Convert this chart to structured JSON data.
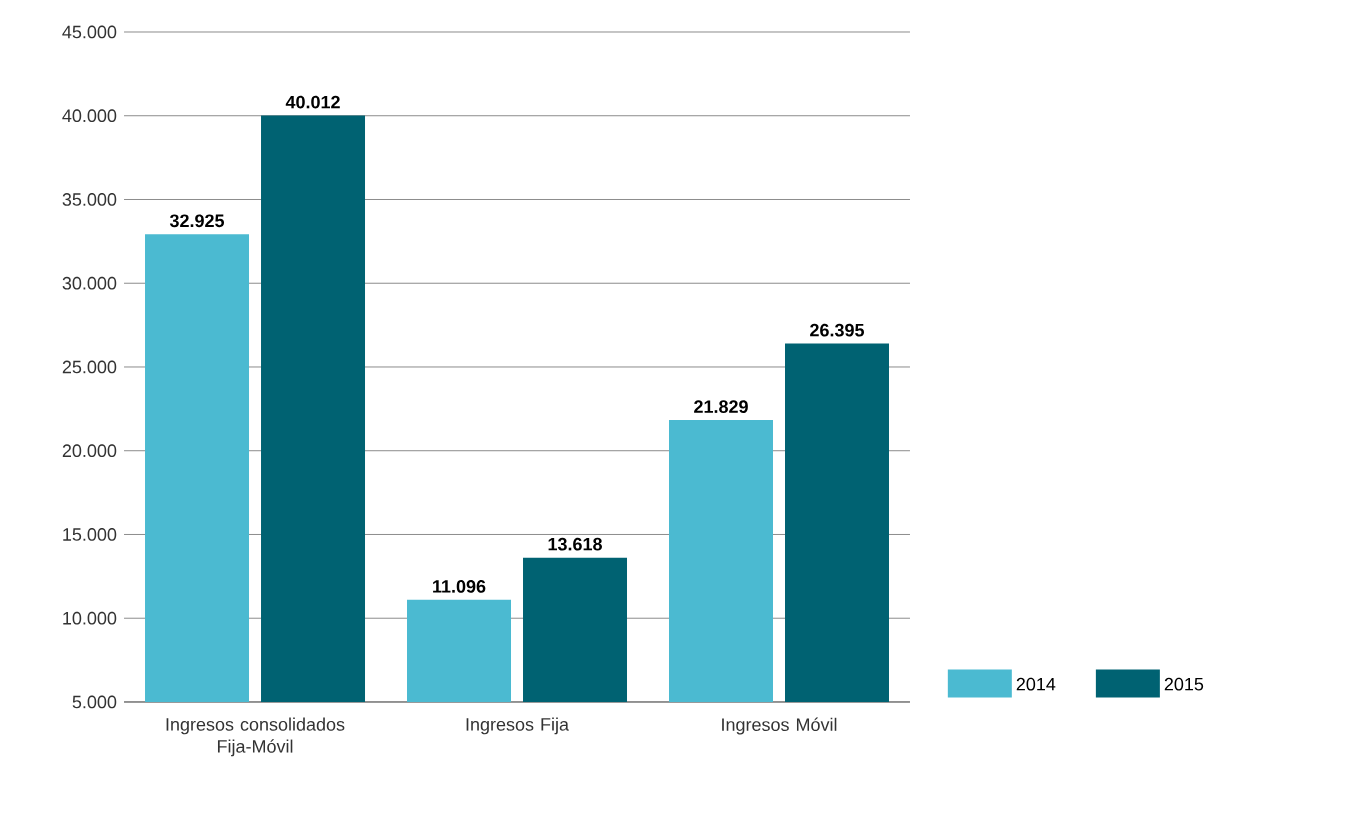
{
  "chart_data": {
    "type": "bar",
    "categories": [
      "Ingresos consolidados Fija-Móvil",
      "Ingresos Fija",
      "Ingresos Móvil"
    ],
    "series": [
      {
        "name": "2014",
        "color": "#4bbad1",
        "values": [
          32925,
          11096,
          21829
        ],
        "value_labels": [
          "32.925",
          "11.096",
          "21.829"
        ]
      },
      {
        "name": "2015",
        "color": "#006272",
        "values": [
          40012,
          13618,
          26395
        ],
        "value_labels": [
          "40.012",
          "13.618",
          "26.395"
        ]
      }
    ],
    "ylim": [
      5000,
      45000
    ],
    "yticks": [
      {
        "value": 5000,
        "label": "5.000"
      },
      {
        "value": 10000,
        "label": "10.000"
      },
      {
        "value": 15000,
        "label": "15.000"
      },
      {
        "value": 20000,
        "label": "20.000"
      },
      {
        "value": 25000,
        "label": "25.000"
      },
      {
        "value": 30000,
        "label": "30.000"
      },
      {
        "value": 35000,
        "label": "35.000"
      },
      {
        "value": 40000,
        "label": "40.000"
      },
      {
        "value": 45000,
        "label": "45.000"
      }
    ],
    "grid": "y",
    "legend": "right"
  }
}
